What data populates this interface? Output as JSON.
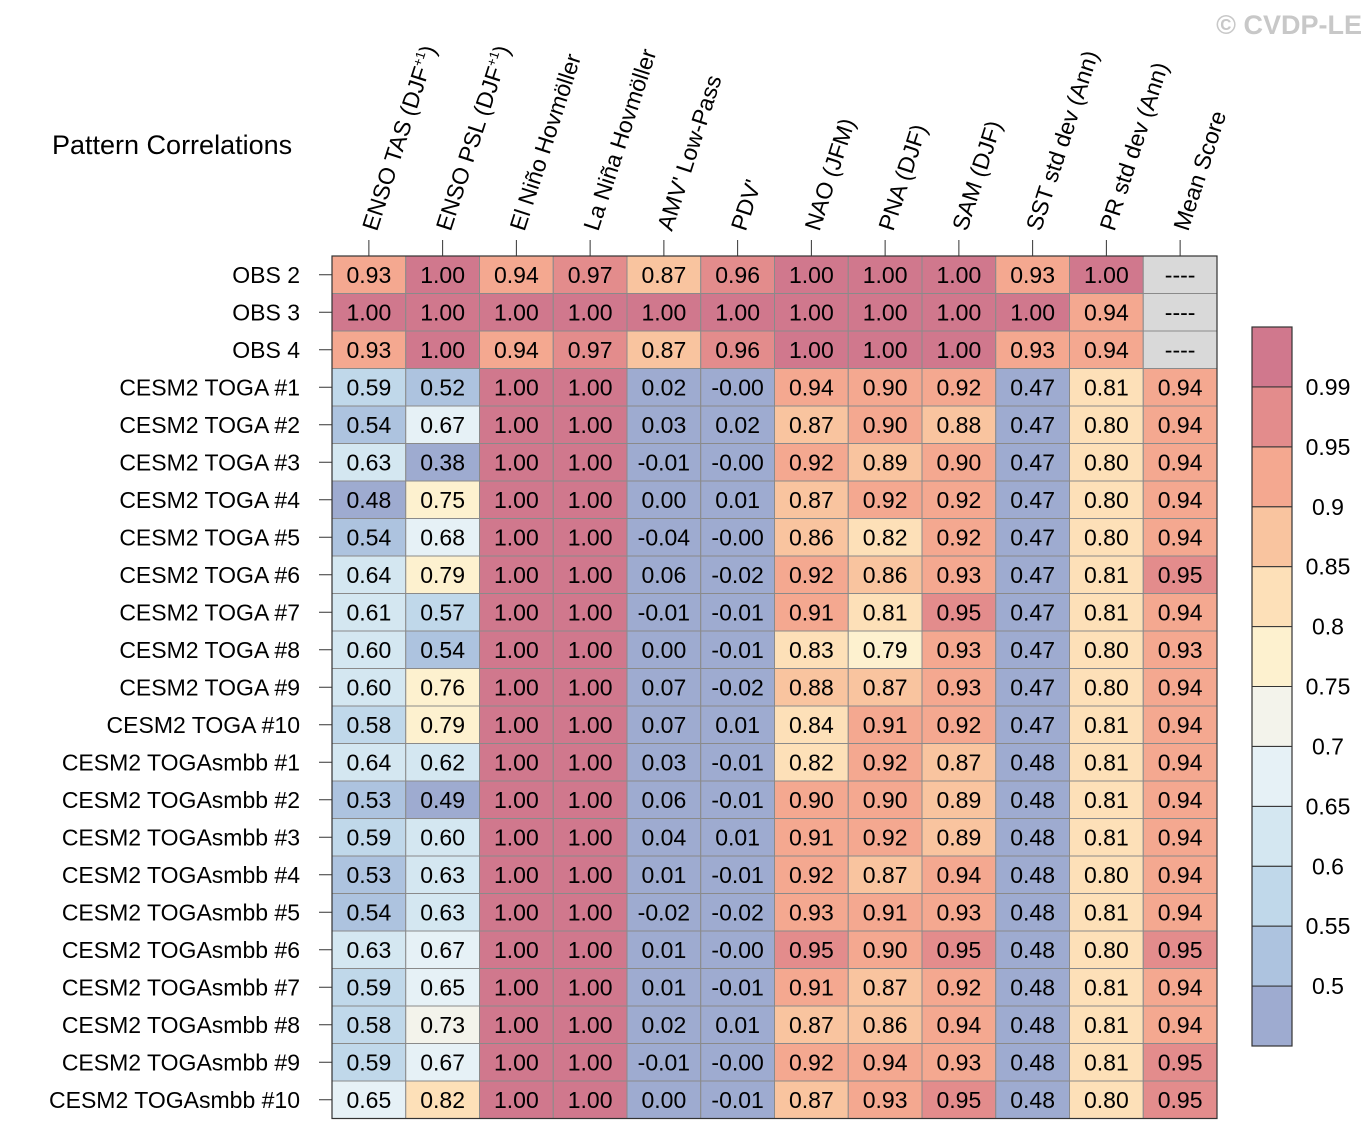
{
  "watermark": "© CVDP-LE",
  "chart_data": {
    "type": "heatmap",
    "title": "Pattern Correlations",
    "columns": [
      "ENSO TAS (DJF+1)",
      "ENSO PSL (DJF+1)",
      "El Niño Hovmöller",
      "La Niña Hovmöller",
      "AMV' Low-Pass",
      "PDV'",
      "NAO (JFM)",
      "PNA (DJF)",
      "SAM (DJF)",
      "SST std dev (Ann)",
      "PR std dev (Ann)",
      "Mean Score"
    ],
    "rows": [
      "OBS 2",
      "OBS 3",
      "OBS 4",
      "CESM2 TOGA #1",
      "CESM2 TOGA #2",
      "CESM2 TOGA #3",
      "CESM2 TOGA #4",
      "CESM2 TOGA #5",
      "CESM2 TOGA #6",
      "CESM2 TOGA #7",
      "CESM2 TOGA #8",
      "CESM2 TOGA #9",
      "CESM2 TOGA #10",
      "CESM2 TOGAsmbb #1",
      "CESM2 TOGAsmbb #2",
      "CESM2 TOGAsmbb #3",
      "CESM2 TOGAsmbb #4",
      "CESM2 TOGAsmbb #5",
      "CESM2 TOGAsmbb #6",
      "CESM2 TOGAsmbb #7",
      "CESM2 TOGAsmbb #8",
      "CESM2 TOGAsmbb #9",
      "CESM2 TOGAsmbb #10"
    ],
    "values": [
      [
        "0.93",
        "1.00",
        "0.94",
        "0.97",
        "0.87",
        "0.96",
        "1.00",
        "1.00",
        "1.00",
        "0.93",
        "1.00",
        "----"
      ],
      [
        "1.00",
        "1.00",
        "1.00",
        "1.00",
        "1.00",
        "1.00",
        "1.00",
        "1.00",
        "1.00",
        "1.00",
        "0.94",
        "----"
      ],
      [
        "0.93",
        "1.00",
        "0.94",
        "0.97",
        "0.87",
        "0.96",
        "1.00",
        "1.00",
        "1.00",
        "0.93",
        "0.94",
        "----"
      ],
      [
        "0.59",
        "0.52",
        "1.00",
        "1.00",
        "0.02",
        "-0.00",
        "0.94",
        "0.90",
        "0.92",
        "0.47",
        "0.81",
        "0.94"
      ],
      [
        "0.54",
        "0.67",
        "1.00",
        "1.00",
        "0.03",
        "0.02",
        "0.87",
        "0.90",
        "0.88",
        "0.47",
        "0.80",
        "0.94"
      ],
      [
        "0.63",
        "0.38",
        "1.00",
        "1.00",
        "-0.01",
        "-0.00",
        "0.92",
        "0.89",
        "0.90",
        "0.47",
        "0.80",
        "0.94"
      ],
      [
        "0.48",
        "0.75",
        "1.00",
        "1.00",
        "0.00",
        "0.01",
        "0.87",
        "0.92",
        "0.92",
        "0.47",
        "0.80",
        "0.94"
      ],
      [
        "0.54",
        "0.68",
        "1.00",
        "1.00",
        "-0.04",
        "-0.00",
        "0.86",
        "0.82",
        "0.92",
        "0.47",
        "0.80",
        "0.94"
      ],
      [
        "0.64",
        "0.79",
        "1.00",
        "1.00",
        "0.06",
        "-0.02",
        "0.92",
        "0.86",
        "0.93",
        "0.47",
        "0.81",
        "0.95"
      ],
      [
        "0.61",
        "0.57",
        "1.00",
        "1.00",
        "-0.01",
        "-0.01",
        "0.91",
        "0.81",
        "0.95",
        "0.47",
        "0.81",
        "0.94"
      ],
      [
        "0.60",
        "0.54",
        "1.00",
        "1.00",
        "0.00",
        "-0.01",
        "0.83",
        "0.79",
        "0.93",
        "0.47",
        "0.80",
        "0.93"
      ],
      [
        "0.60",
        "0.76",
        "1.00",
        "1.00",
        "0.07",
        "-0.02",
        "0.88",
        "0.87",
        "0.93",
        "0.47",
        "0.80",
        "0.94"
      ],
      [
        "0.58",
        "0.79",
        "1.00",
        "1.00",
        "0.07",
        "0.01",
        "0.84",
        "0.91",
        "0.92",
        "0.47",
        "0.81",
        "0.94"
      ],
      [
        "0.64",
        "0.62",
        "1.00",
        "1.00",
        "0.03",
        "-0.01",
        "0.82",
        "0.92",
        "0.87",
        "0.48",
        "0.81",
        "0.94"
      ],
      [
        "0.53",
        "0.49",
        "1.00",
        "1.00",
        "0.06",
        "-0.01",
        "0.90",
        "0.90",
        "0.89",
        "0.48",
        "0.81",
        "0.94"
      ],
      [
        "0.59",
        "0.60",
        "1.00",
        "1.00",
        "0.04",
        "0.01",
        "0.91",
        "0.92",
        "0.89",
        "0.48",
        "0.81",
        "0.94"
      ],
      [
        "0.53",
        "0.63",
        "1.00",
        "1.00",
        "0.01",
        "-0.01",
        "0.92",
        "0.87",
        "0.94",
        "0.48",
        "0.80",
        "0.94"
      ],
      [
        "0.54",
        "0.63",
        "1.00",
        "1.00",
        "-0.02",
        "-0.02",
        "0.93",
        "0.91",
        "0.93",
        "0.48",
        "0.81",
        "0.94"
      ],
      [
        "0.63",
        "0.67",
        "1.00",
        "1.00",
        "0.01",
        "-0.00",
        "0.95",
        "0.90",
        "0.95",
        "0.48",
        "0.80",
        "0.95"
      ],
      [
        "0.59",
        "0.65",
        "1.00",
        "1.00",
        "0.01",
        "-0.01",
        "0.91",
        "0.87",
        "0.92",
        "0.48",
        "0.81",
        "0.94"
      ],
      [
        "0.58",
        "0.73",
        "1.00",
        "1.00",
        "0.02",
        "0.01",
        "0.87",
        "0.86",
        "0.94",
        "0.48",
        "0.81",
        "0.94"
      ],
      [
        "0.59",
        "0.67",
        "1.00",
        "1.00",
        "-0.01",
        "-0.00",
        "0.92",
        "0.94",
        "0.93",
        "0.48",
        "0.81",
        "0.95"
      ],
      [
        "0.65",
        "0.82",
        "1.00",
        "1.00",
        "0.00",
        "-0.01",
        "0.87",
        "0.93",
        "0.95",
        "0.48",
        "0.80",
        "0.95"
      ]
    ],
    "missing_label": "----",
    "colorbar": {
      "levels": [
        "0.5",
        "0.55",
        "0.6",
        "0.65",
        "0.7",
        "0.75",
        "0.8",
        "0.85",
        "0.9",
        "0.95",
        "0.99"
      ],
      "colors": [
        "#9eabd0",
        "#adc3df",
        "#c0d8ea",
        "#d4e7f1",
        "#e6f1f6",
        "#f3f3eb",
        "#fdf1cf",
        "#fde0b8",
        "#f9c49f",
        "#f4a890",
        "#e38c8c",
        "#d0788d"
      ],
      "missing_color": "#d9d9d9"
    }
  }
}
